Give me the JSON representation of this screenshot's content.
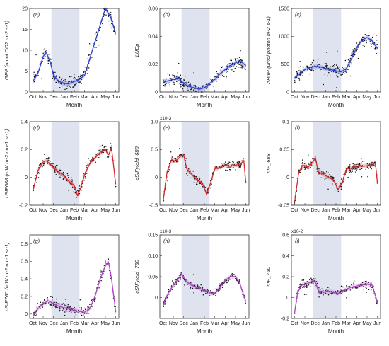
{
  "figure": {
    "colors": {
      "blue": "#2b3fd6",
      "red": "#d62728",
      "purple": "#b040c8",
      "shade": "#dfe3f0",
      "dots": "#111111"
    },
    "x_ticks": [
      "Oct",
      "Nov",
      "Dec",
      "Jan",
      "Feb",
      "Mar",
      "Apr",
      "May",
      "Jun"
    ]
  },
  "chart_data": [
    {
      "id": "a",
      "type": "scatter",
      "panel_label": "(a)",
      "ylabel": "GPP (umol CO2 m-2 s-1)",
      "xlabel": "Month",
      "ylim": [
        0,
        20
      ],
      "yticks": [
        0,
        5,
        10,
        15,
        20
      ],
      "ytick_labels": [
        "0",
        "5",
        "10",
        "15",
        "20"
      ],
      "multiplier": "",
      "line_color": "#2b3fd6",
      "shaded_period": [
        "Nov-25",
        "Feb-15"
      ],
      "x_months": [
        0,
        1,
        2,
        3,
        4,
        5,
        6,
        7,
        8
      ],
      "smooth": [
        [
          0,
          2.5
        ],
        [
          0.5,
          4.5
        ],
        [
          1,
          8.5
        ],
        [
          1.3,
          9.5
        ],
        [
          1.7,
          7
        ],
        [
          2,
          4
        ],
        [
          2.5,
          2.5
        ],
        [
          3,
          2
        ],
        [
          3.5,
          2
        ],
        [
          4,
          2.5
        ],
        [
          4.5,
          3
        ],
        [
          5,
          4
        ],
        [
          5.5,
          8
        ],
        [
          6,
          12
        ],
        [
          6.5,
          16
        ],
        [
          7,
          20
        ],
        [
          7.5,
          18
        ],
        [
          8,
          14
        ]
      ],
      "noise": 2.2,
      "ymin_clip": 0,
      "ymax_clip": 20
    },
    {
      "id": "b",
      "type": "scatter",
      "panel_label": "(b)",
      "ylabel": "LUEp",
      "xlabel": "Month",
      "ylim": [
        0,
        0.06
      ],
      "yticks": [
        0,
        0.02,
        0.04,
        0.06
      ],
      "ytick_labels": [
        "0",
        "0.02",
        "0.04",
        "0.06"
      ],
      "multiplier": "",
      "line_color": "#2b3fd6",
      "shaded_period": [
        "Nov-25",
        "Feb-15"
      ],
      "x_months": [
        0,
        1,
        2,
        3,
        4,
        5,
        6,
        7,
        8
      ],
      "smooth": [
        [
          0,
          0.007
        ],
        [
          0.5,
          0.008
        ],
        [
          1,
          0.009
        ],
        [
          1.5,
          0.01
        ],
        [
          2,
          0.006
        ],
        [
          2.5,
          0.004
        ],
        [
          3,
          0.003
        ],
        [
          3.5,
          0.002
        ],
        [
          4,
          0.003
        ],
        [
          4.5,
          0.006
        ],
        [
          5,
          0.009
        ],
        [
          5.5,
          0.013
        ],
        [
          6,
          0.016
        ],
        [
          6.5,
          0.019
        ],
        [
          7,
          0.021
        ],
        [
          7.5,
          0.022
        ],
        [
          8,
          0.019
        ]
      ],
      "noise": 0.006,
      "ymin_clip": 0,
      "ymax_clip": 0.06
    },
    {
      "id": "c",
      "type": "scatter",
      "panel_label": "(c)",
      "ylabel": "APAR (umol photon m-2 s-1)",
      "xlabel": "Month",
      "ylim": [
        0,
        1500
      ],
      "yticks": [
        0,
        500,
        1000,
        1500
      ],
      "ytick_labels": [
        "0",
        "500",
        "1000",
        "1500"
      ],
      "multiplier": "",
      "line_color": "#2b3fd6",
      "shaded_period": [
        "Nov-25",
        "Feb-15"
      ],
      "x_months": [
        0,
        1,
        2,
        3,
        4,
        5,
        6,
        7,
        8
      ],
      "smooth": [
        [
          0,
          250
        ],
        [
          0.5,
          330
        ],
        [
          1,
          400
        ],
        [
          1.5,
          440
        ],
        [
          2,
          460
        ],
        [
          2.5,
          450
        ],
        [
          3,
          420
        ],
        [
          3.5,
          400
        ],
        [
          4,
          380
        ],
        [
          4.5,
          360
        ],
        [
          5,
          420
        ],
        [
          5.5,
          600
        ],
        [
          6,
          800
        ],
        [
          6.5,
          930
        ],
        [
          7,
          980
        ],
        [
          7.5,
          920
        ],
        [
          8,
          780
        ]
      ],
      "noise": 180,
      "ymin_clip": 0,
      "ymax_clip": 1500
    },
    {
      "id": "d",
      "type": "scatter",
      "panel_label": "(d)",
      "ylabel": "cSIF688 (mW m-2 nm-1 sr-1)",
      "xlabel": "Month",
      "ylim": [
        -0.2,
        0.4
      ],
      "yticks": [
        -0.2,
        0,
        0.2,
        0.4
      ],
      "ytick_labels": [
        "-0.2",
        "0",
        "0.2",
        "0.4"
      ],
      "multiplier": "",
      "line_color": "#d62728",
      "shaded_period": [
        "Nov-25",
        "Feb-15"
      ],
      "x_months": [
        0,
        1,
        2,
        3,
        4,
        5,
        6,
        7,
        8
      ],
      "smooth": [
        [
          0,
          -0.1
        ],
        [
          0.5,
          0.05
        ],
        [
          1,
          0.11
        ],
        [
          1.3,
          0.12
        ],
        [
          1.7,
          0.09
        ],
        [
          2,
          0.07
        ],
        [
          2.5,
          0.04
        ],
        [
          3,
          0.01
        ],
        [
          3.5,
          -0.03
        ],
        [
          4,
          -0.06
        ],
        [
          4.3,
          -0.13
        ],
        [
          4.6,
          -0.08
        ],
        [
          5,
          0.02
        ],
        [
          5.5,
          0.1
        ],
        [
          6,
          0.14
        ],
        [
          6.5,
          0.18
        ],
        [
          7,
          0.2
        ],
        [
          7.3,
          0.16
        ],
        [
          7.6,
          0.21
        ],
        [
          8,
          -0.05
        ]
      ],
      "noise": 0.05,
      "ymin_clip": -0.2,
      "ymax_clip": 0.4
    },
    {
      "id": "e",
      "type": "scatter",
      "panel_label": "(e)",
      "ylabel": "cSIFyield_688",
      "xlabel": "Month",
      "ylim": [
        -0.5,
        1
      ],
      "yticks": [
        -0.5,
        0,
        0.5,
        1
      ],
      "ytick_labels": [
        "-0.5",
        "0",
        "0.5",
        "1.0"
      ],
      "multiplier": "x10-3",
      "line_color": "#d62728",
      "shaded_period": [
        "Nov-25",
        "Feb-15"
      ],
      "x_months": [
        0,
        1,
        2,
        3,
        4,
        5,
        6,
        7,
        8
      ],
      "smooth": [
        [
          0,
          -0.45
        ],
        [
          0.4,
          0.1
        ],
        [
          0.8,
          0.3
        ],
        [
          1.3,
          0.3
        ],
        [
          1.7,
          0.38
        ],
        [
          2,
          0.4
        ],
        [
          2.3,
          0.15
        ],
        [
          2.8,
          0.05
        ],
        [
          3.3,
          -0.05
        ],
        [
          3.8,
          -0.1
        ],
        [
          4.2,
          -0.3
        ],
        [
          4.6,
          -0.1
        ],
        [
          5,
          0.15
        ],
        [
          5.5,
          0.18
        ],
        [
          6,
          0.22
        ],
        [
          6.5,
          0.2
        ],
        [
          7,
          0.22
        ],
        [
          7.5,
          0.24
        ],
        [
          7.8,
          0.3
        ],
        [
          8,
          -0.1
        ]
      ],
      "noise": 0.12,
      "ymin_clip": -0.5,
      "ymax_clip": 1
    },
    {
      "id": "f",
      "type": "scatter",
      "panel_label": "(f)",
      "ylabel": "ΦF_688",
      "xlabel": "Month",
      "ylim": [
        -0.05,
        0.1
      ],
      "yticks": [
        -0.05,
        0,
        0.05,
        0.1
      ],
      "ytick_labels": [
        "-0.05",
        "0",
        "0.05",
        "0.1"
      ],
      "multiplier": "",
      "line_color": "#d62728",
      "shaded_period": [
        "Nov-25",
        "Feb-15"
      ],
      "x_months": [
        0,
        1,
        2,
        3,
        4,
        5,
        6,
        7,
        8
      ],
      "smooth": [
        [
          0,
          -0.045
        ],
        [
          0.4,
          0.008
        ],
        [
          0.8,
          0.022
        ],
        [
          1.3,
          0.018
        ],
        [
          1.7,
          0.026
        ],
        [
          2,
          0.035
        ],
        [
          2.3,
          0.01
        ],
        [
          2.8,
          0.005
        ],
        [
          3.3,
          0.0
        ],
        [
          3.8,
          -0.005
        ],
        [
          4.2,
          -0.022
        ],
        [
          4.6,
          -0.01
        ],
        [
          5,
          0.015
        ],
        [
          5.5,
          0.017
        ],
        [
          6,
          0.02
        ],
        [
          6.5,
          0.02
        ],
        [
          7,
          0.021
        ],
        [
          7.5,
          0.022
        ],
        [
          7.8,
          0.026
        ],
        [
          8,
          -0.01
        ]
      ],
      "noise": 0.012,
      "ymin_clip": -0.05,
      "ymax_clip": 0.1
    },
    {
      "id": "g",
      "type": "scatter",
      "panel_label": "(g)",
      "ylabel": "cSIF760 (mW m-2 nm-1 sr-1)",
      "xlabel": "Month",
      "ylim": [
        -0.05,
        0.9
      ],
      "yticks": [
        0,
        0.2,
        0.4,
        0.6,
        0.8
      ],
      "ytick_labels": [
        "0",
        "0.2",
        "0.4",
        "0.6",
        "0.8"
      ],
      "multiplier": "",
      "line_color": "#b040c8",
      "shaded_period": [
        "Nov-25",
        "Feb-15"
      ],
      "x_months": [
        0,
        1,
        2,
        3,
        4,
        5,
        6,
        7,
        8
      ],
      "smooth": [
        [
          0,
          -0.02
        ],
        [
          0.5,
          0.06
        ],
        [
          1,
          0.12
        ],
        [
          1.5,
          0.15
        ],
        [
          2,
          0.12
        ],
        [
          2.5,
          0.09
        ],
        [
          3,
          0.07
        ],
        [
          3.5,
          0.06
        ],
        [
          4,
          0.04
        ],
        [
          4.5,
          0.03
        ],
        [
          5,
          0.02
        ],
        [
          5.5,
          0.06
        ],
        [
          6,
          0.2
        ],
        [
          6.5,
          0.4
        ],
        [
          7,
          0.55
        ],
        [
          7.3,
          0.6
        ],
        [
          7.6,
          0.4
        ],
        [
          8,
          0.02
        ]
      ],
      "noise": 0.08,
      "ymin_clip": -0.05,
      "ymax_clip": 0.9
    },
    {
      "id": "h",
      "type": "scatter",
      "panel_label": "(h)",
      "ylabel": "cSIFyield_760",
      "xlabel": "Month",
      "ylim": [
        -0.05,
        0.15
      ],
      "yticks": [
        0,
        0.05,
        0.1,
        0.15
      ],
      "ytick_labels": [
        "0",
        "0.05",
        "0.10",
        "0.15"
      ],
      "multiplier": "x10-3",
      "line_color": "#b040c8",
      "shaded_period": [
        "Nov-25",
        "Feb-15"
      ],
      "x_months": [
        0,
        1,
        2,
        3,
        4,
        5,
        6,
        7,
        8
      ],
      "smooth": [
        [
          0,
          -0.02
        ],
        [
          0.5,
          0.01
        ],
        [
          1,
          0.03
        ],
        [
          1.5,
          0.045
        ],
        [
          1.8,
          0.057
        ],
        [
          2.2,
          0.04
        ],
        [
          2.7,
          0.03
        ],
        [
          3.2,
          0.025
        ],
        [
          3.7,
          0.02
        ],
        [
          4.2,
          0.015
        ],
        [
          4.7,
          0.01
        ],
        [
          5,
          0.01
        ],
        [
          5.5,
          0.025
        ],
        [
          6,
          0.04
        ],
        [
          6.5,
          0.05
        ],
        [
          7,
          0.05
        ],
        [
          7.4,
          0.035
        ],
        [
          8,
          -0.01
        ]
      ],
      "noise": 0.012,
      "ymin_clip": -0.05,
      "ymax_clip": 0.15
    },
    {
      "id": "i",
      "type": "scatter",
      "panel_label": "(i)",
      "ylabel": "ΦF_760",
      "xlabel": "Month",
      "ylim": [
        -0.2,
        0.6
      ],
      "yticks": [
        -0.2,
        0,
        0.2,
        0.4,
        0.6
      ],
      "ytick_labels": [
        "-0.2",
        "0",
        "0.2",
        "0.4",
        "0.6"
      ],
      "multiplier": "x10-2",
      "line_color": "#b040c8",
      "shaded_period": [
        "Nov-25",
        "Feb-15"
      ],
      "x_months": [
        0,
        1,
        2,
        3,
        4,
        5,
        6,
        7,
        8
      ],
      "smooth": [
        [
          0,
          -0.15
        ],
        [
          0.3,
          0.05
        ],
        [
          0.7,
          0.12
        ],
        [
          1.2,
          0.13
        ],
        [
          1.6,
          0.15
        ],
        [
          2,
          0.16
        ],
        [
          2.3,
          0.06
        ],
        [
          2.8,
          0.05
        ],
        [
          3.3,
          0.06
        ],
        [
          3.8,
          0.05
        ],
        [
          4.2,
          0.04
        ],
        [
          4.6,
          0.06
        ],
        [
          5,
          0.08
        ],
        [
          5.5,
          0.1
        ],
        [
          6,
          0.11
        ],
        [
          6.5,
          0.12
        ],
        [
          7,
          0.13
        ],
        [
          7.5,
          0.12
        ],
        [
          8,
          -0.05
        ]
      ],
      "noise": 0.05,
      "ymin_clip": -0.2,
      "ymax_clip": 0.6
    }
  ]
}
